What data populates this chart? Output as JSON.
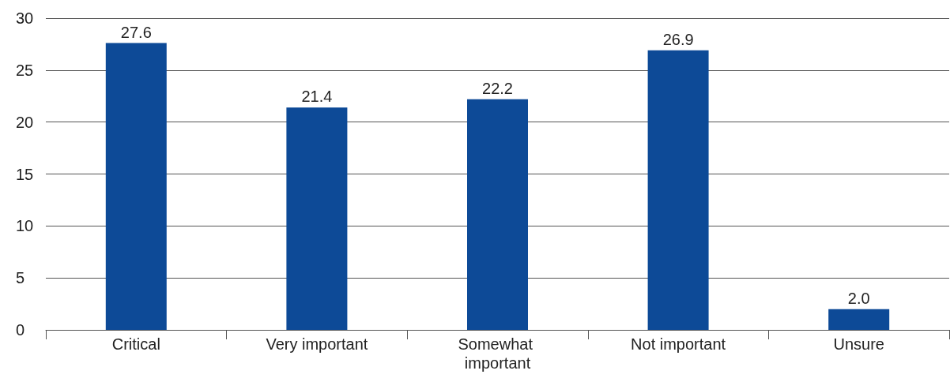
{
  "chart_data": {
    "type": "bar",
    "categories": [
      "Critical",
      "Very important",
      "Somewhat important",
      "Not important",
      "Unsure"
    ],
    "values": [
      27.6,
      21.4,
      22.2,
      26.9,
      2.0
    ],
    "value_labels": [
      "27.6",
      "21.4",
      "22.2",
      "26.9",
      "2.0"
    ],
    "color": "#0d4a97",
    "ylim": [
      0,
      30
    ],
    "yticks": [
      0,
      5,
      10,
      15,
      20,
      25,
      30
    ],
    "grid": "y"
  }
}
